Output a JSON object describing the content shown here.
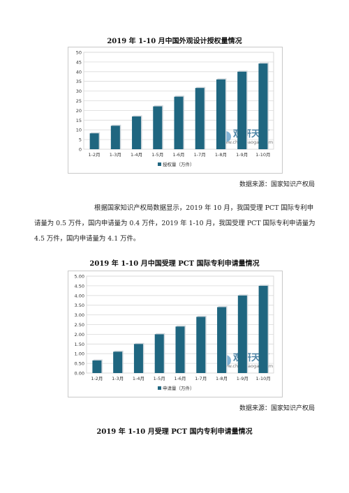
{
  "chart_data": [
    {
      "type": "bar",
      "title": "2019 年 1-10 月中国外观设计授权量情况",
      "categories": [
        "1-2月",
        "1-3月",
        "1-4月",
        "1-5月",
        "1-6月",
        "1-7月",
        "1-8月",
        "1-9月",
        "1-10月"
      ],
      "series": [
        {
          "name": "授权量（万件）",
          "values": [
            8.2,
            12.1,
            16.9,
            22.1,
            27.1,
            31.6,
            36.0,
            40.0,
            44.2
          ]
        }
      ],
      "ylim": [
        0,
        50
      ],
      "yticks": [
        "0",
        "5",
        "10",
        "15",
        "20",
        "25",
        "30",
        "35",
        "40",
        "45",
        "50"
      ],
      "ytick_values": [
        0,
        5,
        10,
        15,
        20,
        25,
        30,
        35,
        40,
        45,
        50
      ],
      "grid": true,
      "legend_position": "bottom",
      "watermark": {
        "brand": "观研天下",
        "site": "www.chinabaogao.com"
      },
      "color": "#1f6680"
    },
    {
      "type": "bar",
      "title": "2019 年 1-10 月中国受理 PCT 国际专利申请量情况",
      "categories": [
        "1-2月",
        "1-3月",
        "1-4月",
        "1-5月",
        "1-6月",
        "1-7月",
        "1-8月",
        "1-9月",
        "1-10月"
      ],
      "series": [
        {
          "name": "申请量（万件）",
          "values": [
            0.65,
            1.1,
            1.5,
            2.0,
            2.4,
            2.9,
            3.4,
            4.0,
            4.5
          ]
        }
      ],
      "ylim": [
        0,
        5
      ],
      "yticks": [
        "0.00",
        "0.50",
        "1.00",
        "1.50",
        "2.00",
        "2.50",
        "3.00",
        "3.50",
        "4.00",
        "4.50",
        "5.00"
      ],
      "ytick_values": [
        0,
        0.5,
        1,
        1.5,
        2,
        2.5,
        3,
        3.5,
        4,
        4.5,
        5
      ],
      "grid": true,
      "legend_position": "bottom",
      "watermark": {
        "brand": "观研天下",
        "site": "www.chinabaogao.com"
      },
      "color": "#1f6680"
    }
  ],
  "source1": "数据来源：国家知识产权局",
  "paragraph": "根据国家知识产权局数据显示，2019 年 10 月，我国受理 PCT 国际专利申请量为 0.5 万件，国内申请量为 0.4 万件，2019 年 1-10 月，我国受理 PCT 国际专利申请量为 4.5 万件，国内申请量为 4.1 万件。",
  "source2": "数据来源：国家知识产权局",
  "next_title": "2019 年 1-10 月受理 PCT 国内专利申请量情况",
  "colors": {
    "bar": "#1f6680",
    "grid": "#d9d9d9",
    "frame": "#c9c9c9"
  }
}
